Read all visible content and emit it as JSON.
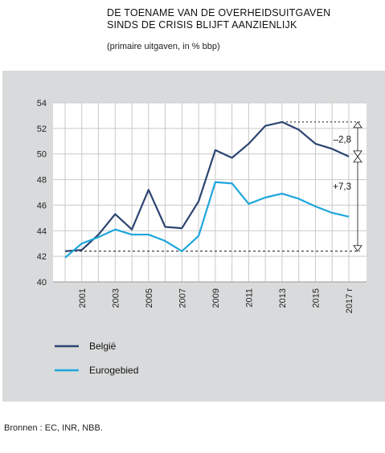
{
  "heading": {
    "title_line1": "DE TOENAME VAN DE OVERHEIDSUITGAVEN",
    "title_line2": "SINDS DE CRISIS BLIJFT AANZIENLIJK",
    "subtitle": "(primaire uitgaven, in % bbp)"
  },
  "source": "Bronnen : EC, INR, NBB.",
  "colors": {
    "belgie": "#2c4472",
    "eurogebied": "#1ea6dc",
    "panel": "#d9dadb"
  },
  "chart_data": {
    "type": "line",
    "title": "DE TOENAME VAN DE OVERHEIDSUITGAVEN SINDS DE CRISIS BLIJFT AANZIENLIJK",
    "subtitle": "(primaire uitgaven, in % bbp)",
    "x": [
      2000,
      2001,
      2002,
      2003,
      2004,
      2005,
      2006,
      2007,
      2008,
      2009,
      2010,
      2011,
      2012,
      2013,
      2014,
      2015,
      2016,
      2017
    ],
    "x_tick_labels": [
      "2001",
      "2003",
      "2005",
      "2007",
      "2009",
      "2011",
      "2013",
      "2015",
      "2017 r"
    ],
    "x_tick_years": [
      2001,
      2003,
      2005,
      2007,
      2009,
      2011,
      2013,
      2015,
      2017
    ],
    "ylim": [
      40,
      54
    ],
    "y_ticks": [
      40,
      42,
      44,
      46,
      48,
      50,
      52,
      54
    ],
    "grid": true,
    "series": [
      {
        "name": "België",
        "color": "#2c4472",
        "values": [
          42.4,
          42.5,
          43.7,
          45.3,
          44.1,
          47.2,
          44.3,
          44.2,
          46.3,
          50.3,
          49.7,
          50.8,
          52.2,
          52.5,
          51.9,
          50.8,
          50.4,
          49.8
        ]
      },
      {
        "name": "Eurogebied",
        "color": "#1ea6dc",
        "values": [
          41.9,
          43.0,
          43.5,
          44.1,
          43.7,
          43.7,
          43.2,
          42.4,
          43.6,
          47.8,
          47.7,
          46.1,
          46.6,
          46.9,
          46.5,
          45.9,
          45.4,
          45.1
        ]
      }
    ],
    "reference_lines": [
      {
        "y": 42.4
      },
      {
        "y": 52.5
      }
    ],
    "annotations": [
      {
        "text": "–2,8",
        "from": 52.5,
        "to": 49.8
      },
      {
        "text": "+7,3",
        "from": 49.8,
        "to": 42.4
      }
    ],
    "legend_position": "bottom-left"
  }
}
